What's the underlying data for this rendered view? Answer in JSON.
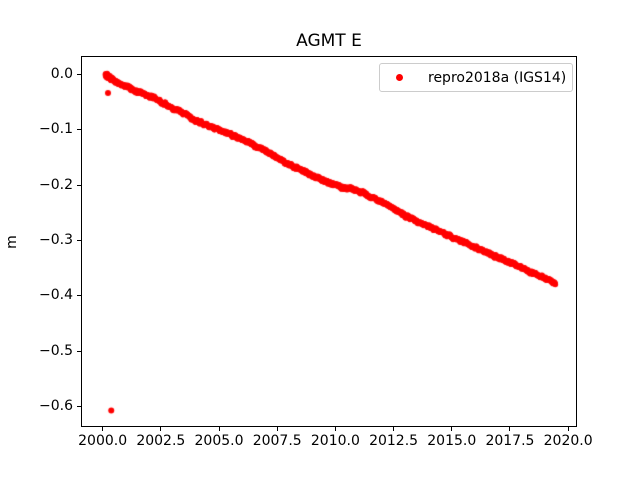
{
  "figure": {
    "background": "#ffffff"
  },
  "chart_data": {
    "type": "scatter",
    "title": "AGMT E",
    "xlabel": "",
    "ylabel": "m",
    "xlim": [
      1999.07,
      2020.38
    ],
    "ylim": [
      -0.637,
      0.033
    ],
    "grid": false,
    "xticks": {
      "values": [
        2000.0,
        2002.5,
        2005.0,
        2007.5,
        2010.0,
        2012.5,
        2015.0,
        2017.5,
        2020.0
      ],
      "labels": [
        "2000.0",
        "2002.5",
        "2005.0",
        "2007.5",
        "2010.0",
        "2012.5",
        "2015.0",
        "2017.5",
        "2020.0"
      ]
    },
    "yticks": {
      "values": [
        0.0,
        -0.1,
        -0.2,
        -0.3,
        -0.4,
        -0.5,
        -0.6
      ],
      "labels": [
        "0.0",
        "−0.1",
        "−0.2",
        "−0.3",
        "−0.4",
        "−0.5",
        "−0.6"
      ]
    },
    "legend": {
      "position": "upper right",
      "entries": [
        {
          "label": "repro2018a (IGS14)",
          "marker": "dot",
          "color": "#ff0000"
        }
      ]
    },
    "series": [
      {
        "name": "repro2018a (IGS14)",
        "color": "#ff0000",
        "marker_radius_px": 2.8,
        "x_range": [
          2000.12,
          2019.45
        ],
        "sampling_step_years": 0.01,
        "trend_anchors": [
          [
            2000.12,
            -0.001
          ],
          [
            2000.3,
            -0.005
          ],
          [
            2000.55,
            -0.015
          ],
          [
            2000.9,
            -0.021
          ],
          [
            2001.5,
            -0.033
          ],
          [
            2002.2,
            -0.043
          ],
          [
            2003.0,
            -0.062
          ],
          [
            2003.5,
            -0.069
          ],
          [
            2004.0,
            -0.082
          ],
          [
            2005.0,
            -0.1
          ],
          [
            2006.0,
            -0.118
          ],
          [
            2007.0,
            -0.14
          ],
          [
            2008.0,
            -0.163
          ],
          [
            2008.5,
            -0.172
          ],
          [
            2009.5,
            -0.19
          ],
          [
            2010.0,
            -0.199
          ],
          [
            2011.0,
            -0.211
          ],
          [
            2012.0,
            -0.232
          ],
          [
            2013.0,
            -0.256
          ],
          [
            2013.6,
            -0.268
          ],
          [
            2014.5,
            -0.283
          ],
          [
            2015.5,
            -0.301
          ],
          [
            2016.0,
            -0.312
          ],
          [
            2017.0,
            -0.332
          ],
          [
            2017.5,
            -0.341
          ],
          [
            2018.3,
            -0.357
          ],
          [
            2018.8,
            -0.365
          ],
          [
            2019.2,
            -0.371
          ],
          [
            2019.45,
            -0.378
          ]
        ],
        "outliers": [
          [
            2000.23,
            -0.034
          ],
          [
            2000.37,
            -0.607
          ]
        ],
        "dense_start": {
          "range": [
            2000.12,
            2000.45
          ],
          "count": 40,
          "spread": 0.008
        },
        "noise": {
          "seed": 42,
          "rho": 0.6,
          "innovation": 0.0018,
          "jitter": 0.001,
          "wiggle_amp": 0.0015,
          "wiggle_freq": 1.1
        }
      }
    ]
  }
}
